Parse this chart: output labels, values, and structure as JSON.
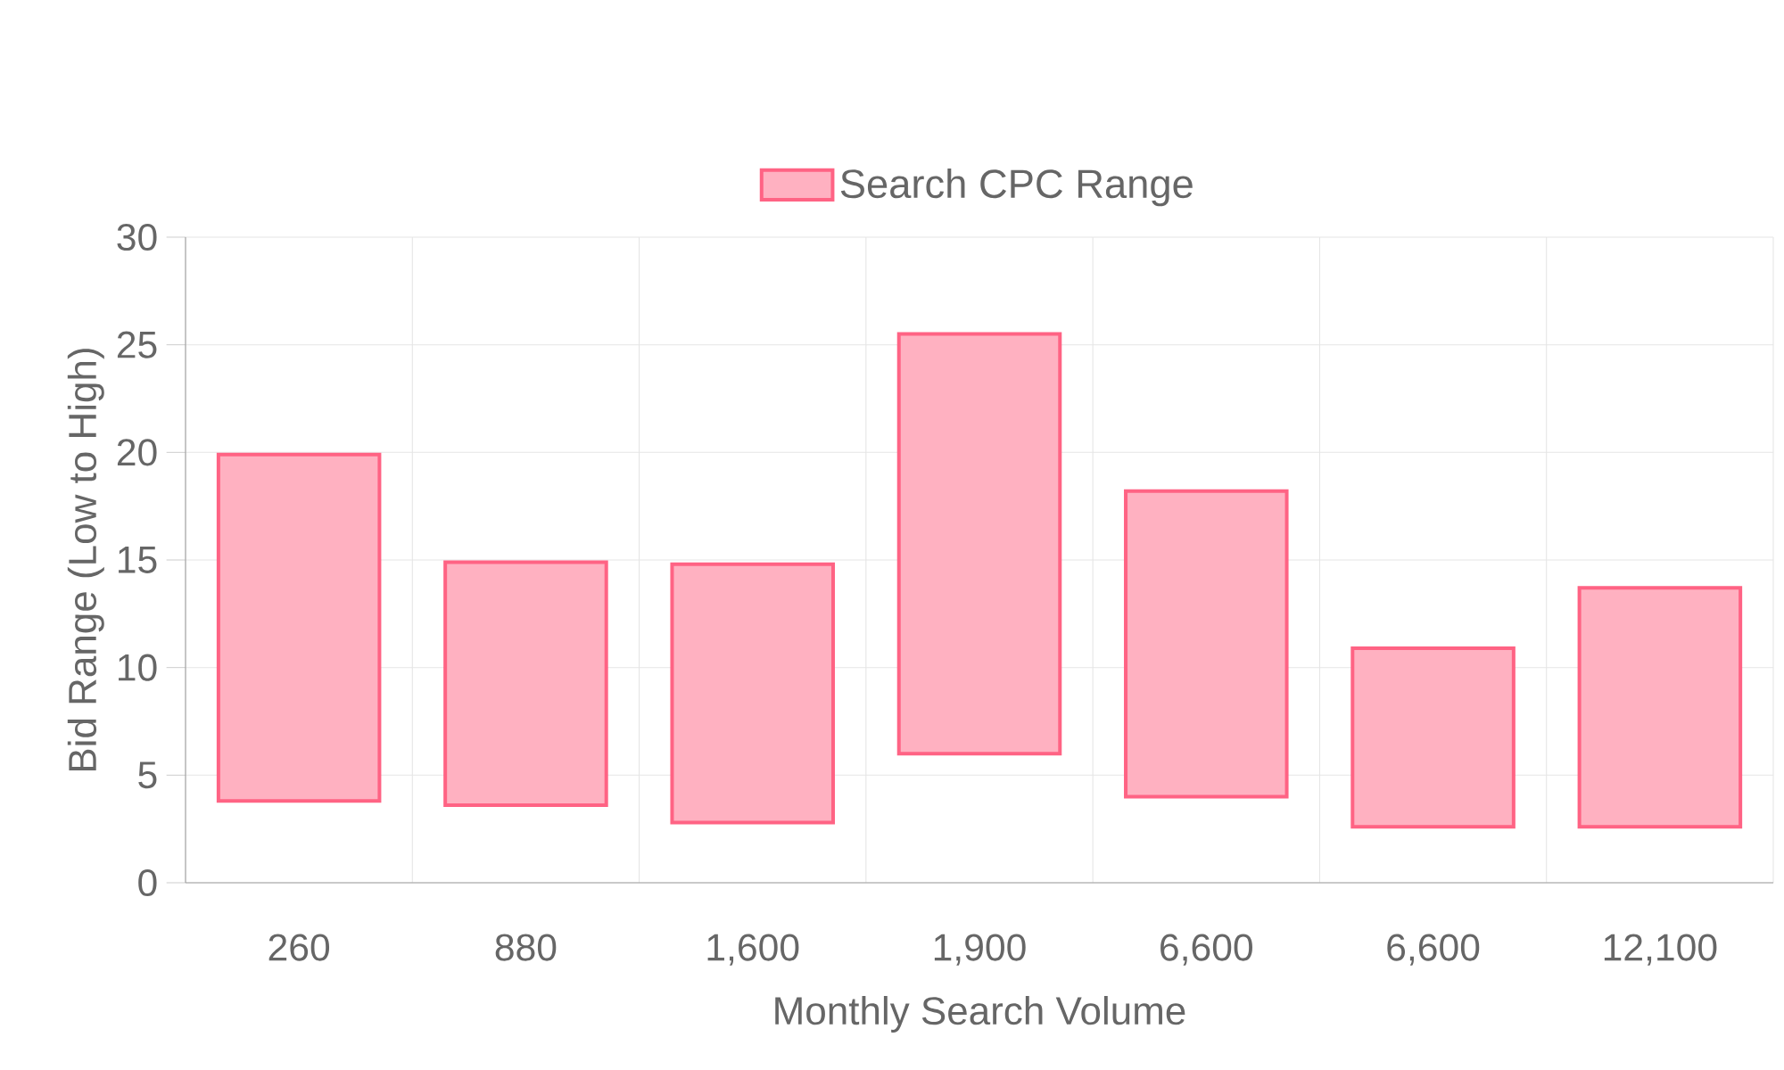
{
  "chart_data": {
    "type": "bar",
    "xlabel": "Monthly Search Volume",
    "ylabel": "Bid Range (Low to High)",
    "categories": [
      "260",
      "880",
      "1,600",
      "1,900",
      "6,600",
      "6,600",
      "12,100"
    ],
    "series": [
      {
        "name": "Search CPC Range",
        "color": "#ff6384",
        "base": [
          3.8,
          3.6,
          2.8,
          6.0,
          4.0,
          2.6,
          2.6
        ],
        "values": [
          16.1,
          11.3,
          12.0,
          19.5,
          14.2,
          8.3,
          11.1
        ]
      }
    ],
    "ylim": [
      0,
      30
    ],
    "yticks": [
      0,
      5,
      10,
      15,
      20,
      25,
      30
    ],
    "grid": true,
    "legend": "top"
  }
}
